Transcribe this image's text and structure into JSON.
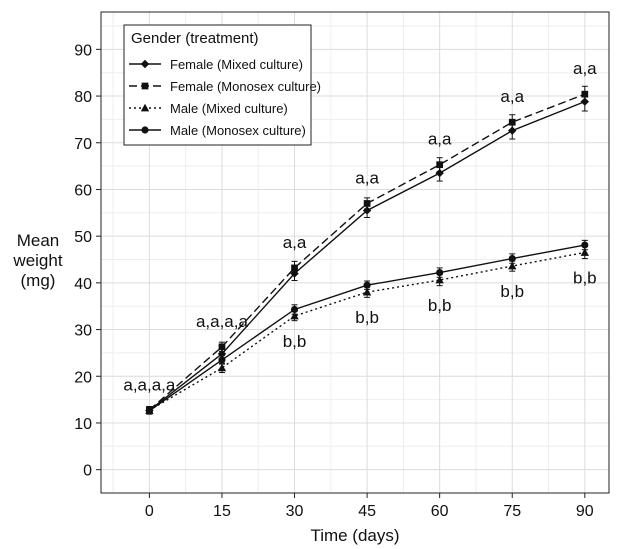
{
  "chart_data": {
    "type": "line",
    "title": "",
    "xlabel": "Time (days)",
    "ylabel_lines": [
      "Mean",
      "weight",
      "(mg)"
    ],
    "x": [
      0,
      15,
      30,
      45,
      60,
      75,
      90
    ],
    "xlim": [
      -10,
      95
    ],
    "ylim": [
      -5,
      98
    ],
    "xticks": [
      0,
      15,
      30,
      45,
      60,
      75,
      90
    ],
    "yticks": [
      0,
      10,
      20,
      30,
      40,
      50,
      60,
      70,
      80,
      90
    ],
    "grid": true,
    "legend": {
      "title": "Gender (treatment)",
      "placement": "top-left"
    },
    "series": [
      {
        "name": "Female (Mixed culture)",
        "marker": "diamond",
        "dash": "solid",
        "values": [
          12.7,
          24.8,
          42.0,
          55.5,
          63.5,
          72.6,
          78.8
        ],
        "errors": [
          0.8,
          1.2,
          1.5,
          1.5,
          1.7,
          1.8,
          2.0
        ]
      },
      {
        "name": "Female (Monosex culture)",
        "marker": "square",
        "dash": "longdash",
        "values": [
          12.8,
          26.3,
          43.2,
          57.0,
          65.3,
          74.4,
          80.4
        ],
        "errors": [
          0.7,
          1.0,
          1.4,
          1.2,
          1.5,
          1.6,
          1.7
        ]
      },
      {
        "name": "Male (Mixed culture)",
        "marker": "triangle",
        "dash": "dotted",
        "values": [
          12.7,
          21.8,
          32.9,
          38.0,
          40.6,
          43.6,
          46.5
        ],
        "errors": [
          0.8,
          1.0,
          1.0,
          1.1,
          1.2,
          1.1,
          1.3
        ]
      },
      {
        "name": "Male (Monosex culture)",
        "marker": "circle",
        "dash": "solid",
        "values": [
          12.6,
          23.5,
          34.3,
          39.5,
          42.2,
          45.2,
          48.1
        ],
        "errors": [
          0.6,
          0.9,
          1.0,
          0.9,
          1.0,
          1.0,
          1.0
        ]
      }
    ],
    "annotations": [
      {
        "x": 0,
        "y": 12.7,
        "text": "a,a,a,a",
        "position": "above"
      },
      {
        "x": 15,
        "y": 26.3,
        "text": "a,a,a,a",
        "position": "above"
      },
      {
        "x": 30,
        "y": 43.2,
        "text": "a,a",
        "position": "above"
      },
      {
        "x": 45,
        "y": 57.0,
        "text": "a,a",
        "position": "above"
      },
      {
        "x": 60,
        "y": 65.3,
        "text": "a,a",
        "position": "above"
      },
      {
        "x": 75,
        "y": 74.4,
        "text": "a,a",
        "position": "above"
      },
      {
        "x": 90,
        "y": 80.4,
        "text": "a,a",
        "position": "above"
      },
      {
        "x": 30,
        "y": 32.9,
        "text": "b,b",
        "position": "below"
      },
      {
        "x": 45,
        "y": 38.0,
        "text": "b,b",
        "position": "below"
      },
      {
        "x": 60,
        "y": 40.6,
        "text": "b,b",
        "position": "below"
      },
      {
        "x": 75,
        "y": 43.6,
        "text": "b,b",
        "position": "below"
      },
      {
        "x": 90,
        "y": 46.5,
        "text": "b,b",
        "position": "below"
      }
    ]
  }
}
